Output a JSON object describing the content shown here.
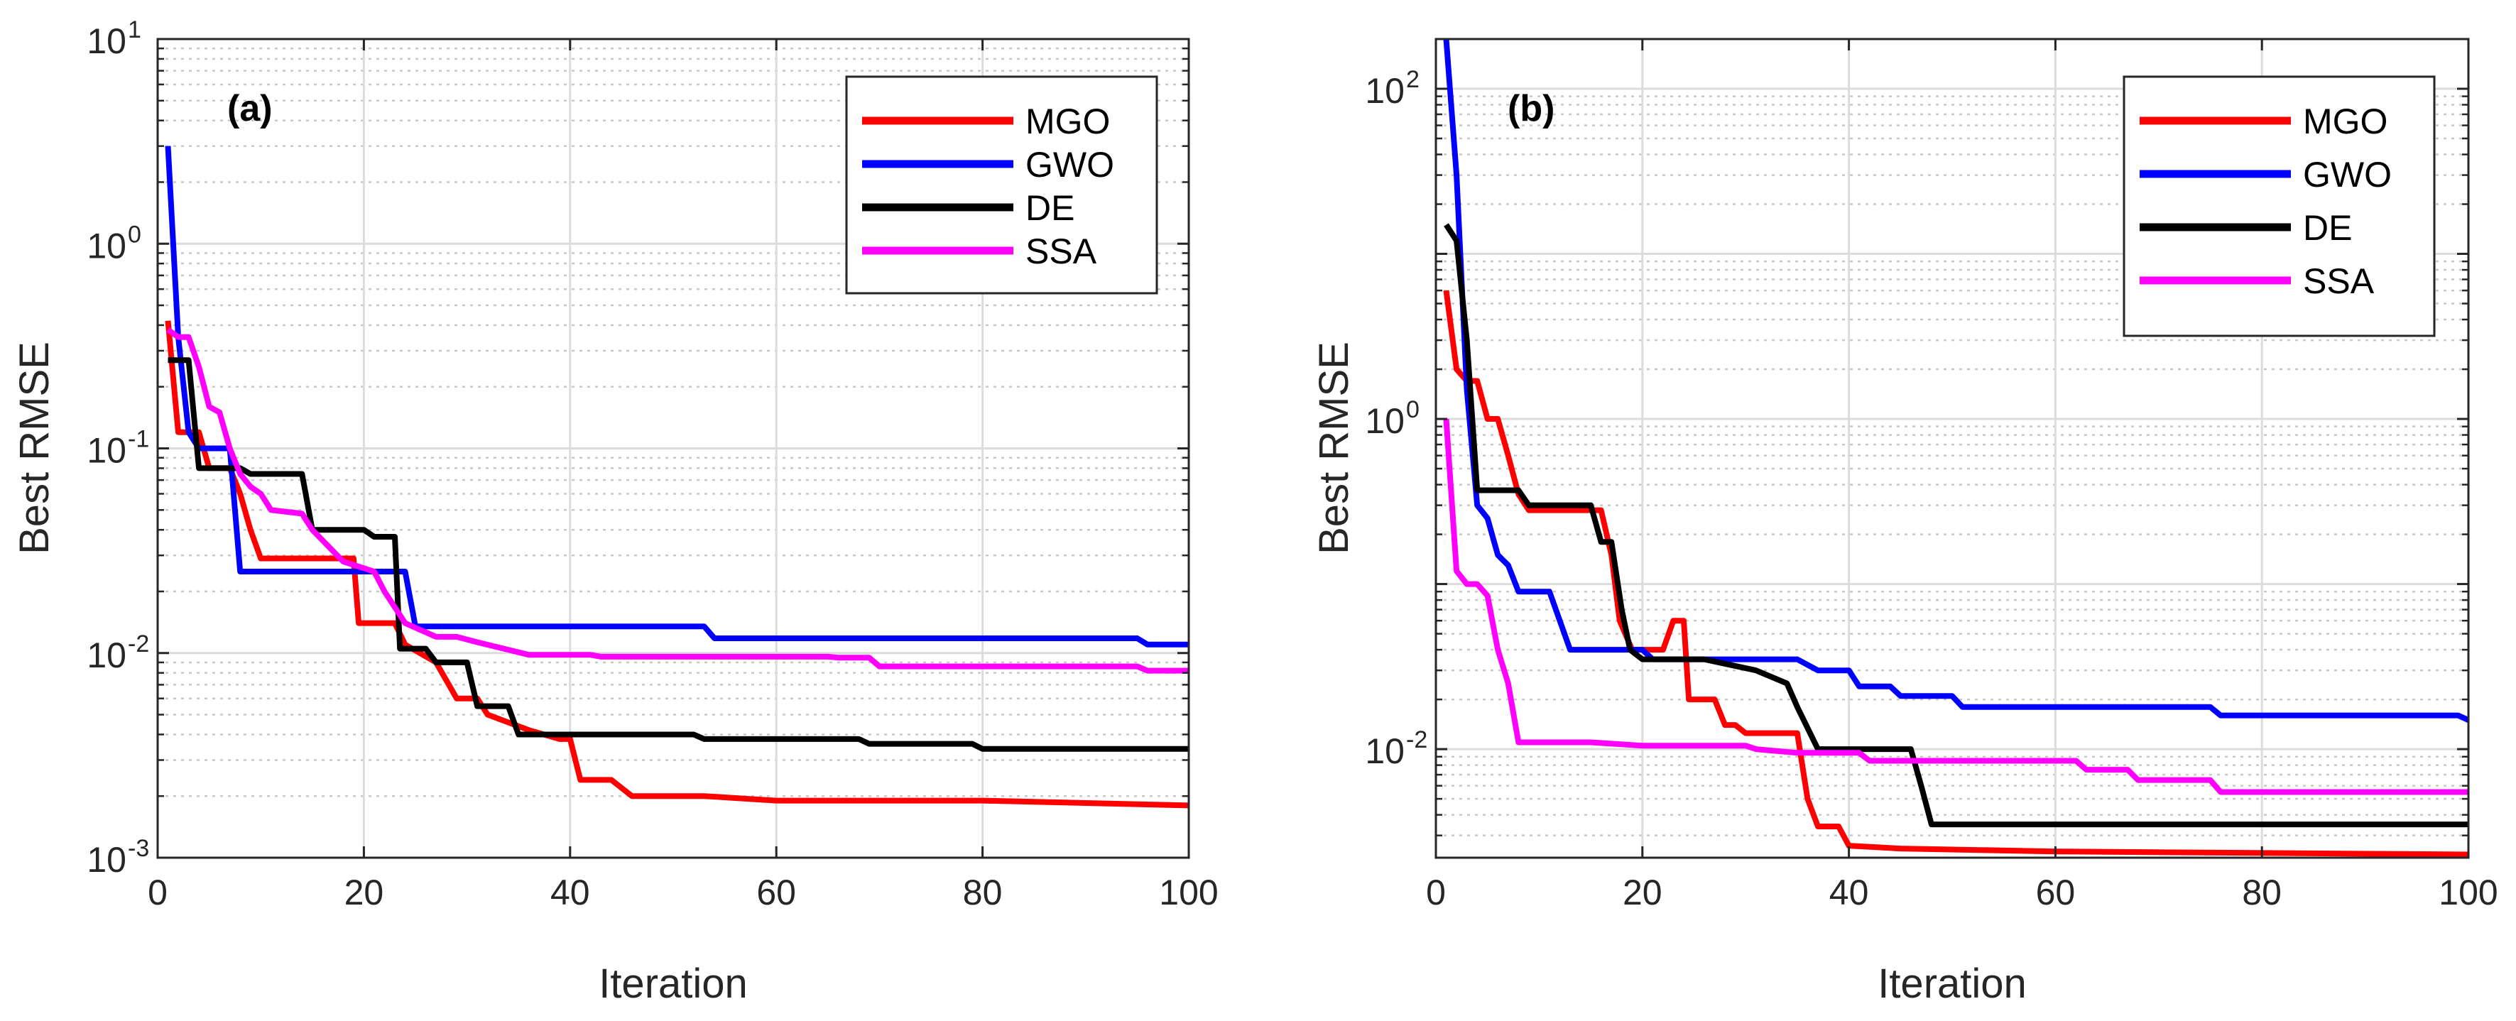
{
  "chart_data": [
    {
      "type": "line",
      "panel_label": "(a)",
      "xlabel": "Iteration",
      "ylabel": "Best RMSE",
      "xlim": [
        0,
        100
      ],
      "ylim": [
        0.001,
        10
      ],
      "yscale": "log",
      "grid": true,
      "legend_position": "top-right",
      "x_ticks": [
        "0",
        "20",
        "40",
        "60",
        "80",
        "100"
      ],
      "y_ticks": [
        {
          "base": "10",
          "exp": "-3",
          "value": 0.001
        },
        {
          "base": "10",
          "exp": "-2",
          "value": 0.01
        },
        {
          "base": "10",
          "exp": "-1",
          "value": 0.1
        },
        {
          "base": "10",
          "exp": "0",
          "value": 1
        },
        {
          "base": "10",
          "exp": "1",
          "value": 10
        }
      ],
      "series": [
        {
          "name": "MGO",
          "color": "#ff0000",
          "points": [
            [
              1,
              0.42
            ],
            [
              2,
              0.12
            ],
            [
              4,
              0.12
            ],
            [
              5,
              0.08
            ],
            [
              7,
              0.08
            ],
            [
              8,
              0.06
            ],
            [
              9,
              0.04
            ],
            [
              10,
              0.029
            ],
            [
              19,
              0.029
            ],
            [
              19.5,
              0.014
            ],
            [
              23,
              0.014
            ],
            [
              24,
              0.011
            ],
            [
              27,
              0.009
            ],
            [
              29,
              0.006
            ],
            [
              31,
              0.006
            ],
            [
              32,
              0.005
            ],
            [
              36,
              0.0042
            ],
            [
              39,
              0.0038
            ],
            [
              40,
              0.0038
            ],
            [
              41,
              0.0024
            ],
            [
              44,
              0.0024
            ],
            [
              46,
              0.002
            ],
            [
              53,
              0.002
            ],
            [
              60,
              0.0019
            ],
            [
              80,
              0.0019
            ],
            [
              100,
              0.0018
            ]
          ]
        },
        {
          "name": "GWO",
          "color": "#0000ff",
          "points": [
            [
              1,
              3.0
            ],
            [
              2,
              0.35
            ],
            [
              3,
              0.12
            ],
            [
              4,
              0.1
            ],
            [
              7,
              0.1
            ],
            [
              8,
              0.025
            ],
            [
              24,
              0.025
            ],
            [
              25,
              0.0135
            ],
            [
              53,
              0.0135
            ],
            [
              54,
              0.0118
            ],
            [
              95,
              0.0118
            ],
            [
              96,
              0.011
            ],
            [
              100,
              0.011
            ]
          ]
        },
        {
          "name": "DE",
          "color": "#000000",
          "points": [
            [
              1,
              0.27
            ],
            [
              3,
              0.27
            ],
            [
              4,
              0.08
            ],
            [
              8,
              0.08
            ],
            [
              9,
              0.075
            ],
            [
              14,
              0.075
            ],
            [
              15,
              0.04
            ],
            [
              20,
              0.04
            ],
            [
              21,
              0.037
            ],
            [
              23,
              0.037
            ],
            [
              23.5,
              0.0105
            ],
            [
              26,
              0.0105
            ],
            [
              27,
              0.009
            ],
            [
              30,
              0.009
            ],
            [
              31,
              0.0055
            ],
            [
              34,
              0.0055
            ],
            [
              35,
              0.004
            ],
            [
              52,
              0.004
            ],
            [
              53,
              0.0038
            ],
            [
              68,
              0.0038
            ],
            [
              69,
              0.0036
            ],
            [
              79,
              0.0036
            ],
            [
              80,
              0.0034
            ],
            [
              100,
              0.0034
            ]
          ]
        },
        {
          "name": "SSA",
          "color": "#ff00ff",
          "points": [
            [
              1,
              0.38
            ],
            [
              2,
              0.35
            ],
            [
              3,
              0.35
            ],
            [
              4,
              0.25
            ],
            [
              5,
              0.16
            ],
            [
              6,
              0.15
            ],
            [
              7,
              0.1
            ],
            [
              8,
              0.075
            ],
            [
              9,
              0.065
            ],
            [
              10,
              0.06
            ],
            [
              11,
              0.05
            ],
            [
              14,
              0.048
            ],
            [
              15,
              0.04
            ],
            [
              18,
              0.028
            ],
            [
              21,
              0.025
            ],
            [
              22,
              0.02
            ],
            [
              24,
              0.014
            ],
            [
              27,
              0.012
            ],
            [
              29,
              0.012
            ],
            [
              31,
              0.0113
            ],
            [
              36,
              0.0098
            ],
            [
              42,
              0.0098
            ],
            [
              43,
              0.0096
            ],
            [
              65,
              0.0096
            ],
            [
              66,
              0.0095
            ],
            [
              69,
              0.0095
            ],
            [
              70,
              0.0086
            ],
            [
              95,
              0.0086
            ],
            [
              96,
              0.0082
            ],
            [
              100,
              0.0082
            ]
          ]
        }
      ]
    },
    {
      "type": "line",
      "panel_label": "(b)",
      "xlabel": "Iteration",
      "ylabel": "Best RMSE",
      "xlim": [
        0,
        100
      ],
      "ylim": [
        0.0022,
        200
      ],
      "yscale": "log",
      "grid": true,
      "legend_position": "top-right",
      "x_ticks": [
        "0",
        "20",
        "40",
        "60",
        "80",
        "100"
      ],
      "y_ticks": [
        {
          "base": "10",
          "exp": "-2",
          "value": 0.01
        },
        {
          "base": "10",
          "exp": "0",
          "value": 1
        },
        {
          "base": "10",
          "exp": "2",
          "value": 100
        }
      ],
      "series": [
        {
          "name": "MGO",
          "color": "#ff0000",
          "points": [
            [
              1,
              6.0
            ],
            [
              2,
              2.0
            ],
            [
              3,
              1.7
            ],
            [
              4,
              1.7
            ],
            [
              5,
              1.0
            ],
            [
              6,
              1.0
            ],
            [
              7,
              0.6
            ],
            [
              8,
              0.35
            ],
            [
              9,
              0.28
            ],
            [
              16,
              0.28
            ],
            [
              17,
              0.15
            ],
            [
              17.8,
              0.06
            ],
            [
              19,
              0.04
            ],
            [
              22,
              0.04
            ],
            [
              23,
              0.06
            ],
            [
              24,
              0.06
            ],
            [
              24.5,
              0.02
            ],
            [
              27,
              0.02
            ],
            [
              28,
              0.014
            ],
            [
              29,
              0.014
            ],
            [
              30,
              0.0125
            ],
            [
              35,
              0.0125
            ],
            [
              36,
              0.005
            ],
            [
              37,
              0.0034
            ],
            [
              39,
              0.0034
            ],
            [
              40,
              0.0026
            ],
            [
              45,
              0.0025
            ],
            [
              60,
              0.0024
            ],
            [
              100,
              0.0023
            ]
          ]
        },
        {
          "name": "GWO",
          "color": "#0000ff",
          "points": [
            [
              1,
              200
            ],
            [
              2,
              30
            ],
            [
              3,
              1.5
            ],
            [
              4,
              0.3
            ],
            [
              5,
              0.25
            ],
            [
              6,
              0.15
            ],
            [
              7,
              0.13
            ],
            [
              8,
              0.09
            ],
            [
              11,
              0.09
            ],
            [
              12,
              0.06
            ],
            [
              13,
              0.04
            ],
            [
              20,
              0.04
            ],
            [
              21,
              0.035
            ],
            [
              35,
              0.035
            ],
            [
              37,
              0.03
            ],
            [
              40,
              0.03
            ],
            [
              41,
              0.024
            ],
            [
              44,
              0.024
            ],
            [
              45,
              0.021
            ],
            [
              50,
              0.021
            ],
            [
              51,
              0.018
            ],
            [
              75,
              0.018
            ],
            [
              76,
              0.016
            ],
            [
              99,
              0.016
            ],
            [
              100,
              0.015
            ]
          ]
        },
        {
          "name": "DE",
          "color": "#000000",
          "points": [
            [
              1,
              15
            ],
            [
              2,
              12
            ],
            [
              3,
              3.0
            ],
            [
              4,
              0.37
            ],
            [
              8,
              0.37
            ],
            [
              9,
              0.3
            ],
            [
              15,
              0.3
            ],
            [
              16,
              0.18
            ],
            [
              17,
              0.18
            ],
            [
              18,
              0.07
            ],
            [
              18.8,
              0.04
            ],
            [
              20,
              0.035
            ],
            [
              26,
              0.035
            ],
            [
              31,
              0.03
            ],
            [
              34,
              0.025
            ],
            [
              35,
              0.018
            ],
            [
              37,
              0.01
            ],
            [
              46,
              0.01
            ],
            [
              47,
              0.006
            ],
            [
              48,
              0.0035
            ],
            [
              100,
              0.0035
            ]
          ]
        },
        {
          "name": "SSA",
          "color": "#ff00ff",
          "points": [
            [
              1,
              1.0
            ],
            [
              2,
              0.12
            ],
            [
              3,
              0.1
            ],
            [
              4,
              0.1
            ],
            [
              5,
              0.085
            ],
            [
              6,
              0.04
            ],
            [
              7,
              0.025
            ],
            [
              8,
              0.011
            ],
            [
              15,
              0.011
            ],
            [
              20,
              0.0105
            ],
            [
              30,
              0.0105
            ],
            [
              31,
              0.01
            ],
            [
              35,
              0.0095
            ],
            [
              41,
              0.0095
            ],
            [
              42,
              0.0085
            ],
            [
              62,
              0.0085
            ],
            [
              63,
              0.0075
            ],
            [
              67,
              0.0075
            ],
            [
              68,
              0.0065
            ],
            [
              75,
              0.0065
            ],
            [
              76,
              0.0055
            ],
            [
              100,
              0.0055
            ]
          ]
        }
      ]
    }
  ]
}
